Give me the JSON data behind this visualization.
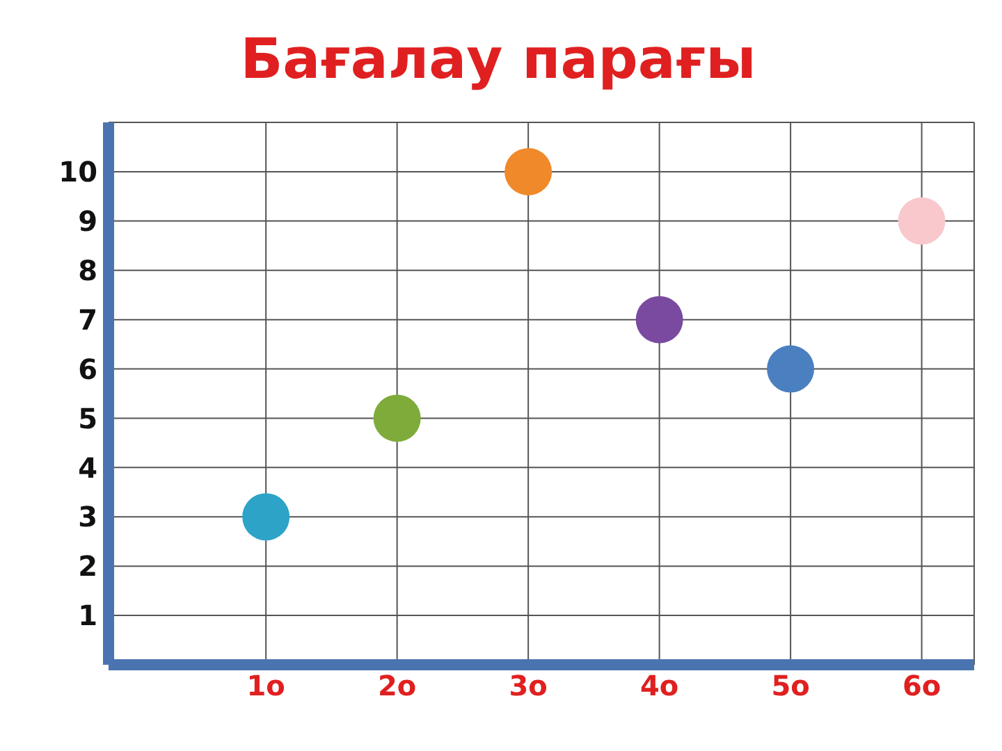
{
  "chart_data": {
    "type": "scatter",
    "title": "Бағалау парағы",
    "categories": [
      "1o",
      "2o",
      "3o",
      "4o",
      "5o",
      "6o"
    ],
    "values": [
      3,
      5,
      10,
      7,
      6,
      9
    ],
    "colors": [
      "#2ea3c8",
      "#7fab3a",
      "#f0892a",
      "#7a4aa0",
      "#4a7fc0",
      "#f8c8cc"
    ],
    "ylim": [
      0,
      11
    ],
    "yticks": [
      1,
      2,
      3,
      4,
      5,
      6,
      7,
      8,
      9,
      10
    ],
    "grid": true,
    "marker": "circle"
  }
}
